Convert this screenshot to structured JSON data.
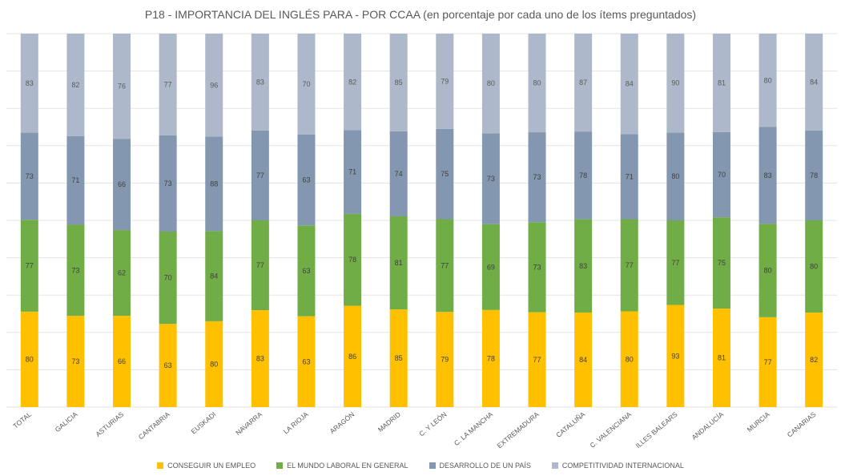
{
  "chart_data": {
    "type": "bar",
    "stacked": true,
    "title": "P18 - IMPORTANCIA DEL INGLÉS PARA - POR CCAA (en porcentaje por cada uno de los ítems preguntados)",
    "grid": true,
    "legend_position": "bottom",
    "categories": [
      "TOTAL",
      "GALICIA",
      "ASTURIAS",
      "CANTABRIA",
      "EUSKADI",
      "NAVARRA",
      "LA RIOJA",
      "ARAGÓN",
      "MADRID",
      "C. Y LEÓN",
      "C. LA MANCHA",
      "EXTREMADURA",
      "CATALUÑA",
      "C. VALENCIANA",
      "ILLES BALEARS",
      "ANDALUCÍA",
      "MURCIA",
      "CANARIAS"
    ],
    "series": [
      {
        "name": "CONSEGUIR UN EMPLEO",
        "color": "#FFC000",
        "values": [
          80,
          73,
          66,
          63,
          80,
          83,
          63,
          86,
          85,
          79,
          78,
          77,
          84,
          80,
          93,
          81,
          77,
          82
        ]
      },
      {
        "name": "EL MUNDO LABORAL EN GENERAL",
        "color": "#70AD47",
        "values": [
          77,
          73,
          62,
          70,
          84,
          77,
          63,
          78,
          81,
          77,
          69,
          73,
          83,
          77,
          77,
          75,
          80,
          80
        ]
      },
      {
        "name": "DESARROLLO DE UN PAÍS",
        "color": "#8497B0",
        "values": [
          73,
          71,
          66,
          73,
          88,
          77,
          63,
          71,
          74,
          75,
          73,
          73,
          78,
          71,
          80,
          70,
          83,
          78
        ]
      },
      {
        "name": "COMPETITIVIDAD INTERNACIONAL",
        "color": "#ADB9CA",
        "values": [
          83,
          82,
          76,
          77,
          96,
          83,
          70,
          82,
          85,
          79,
          80,
          80,
          87,
          84,
          90,
          81,
          80,
          84
        ]
      }
    ]
  }
}
